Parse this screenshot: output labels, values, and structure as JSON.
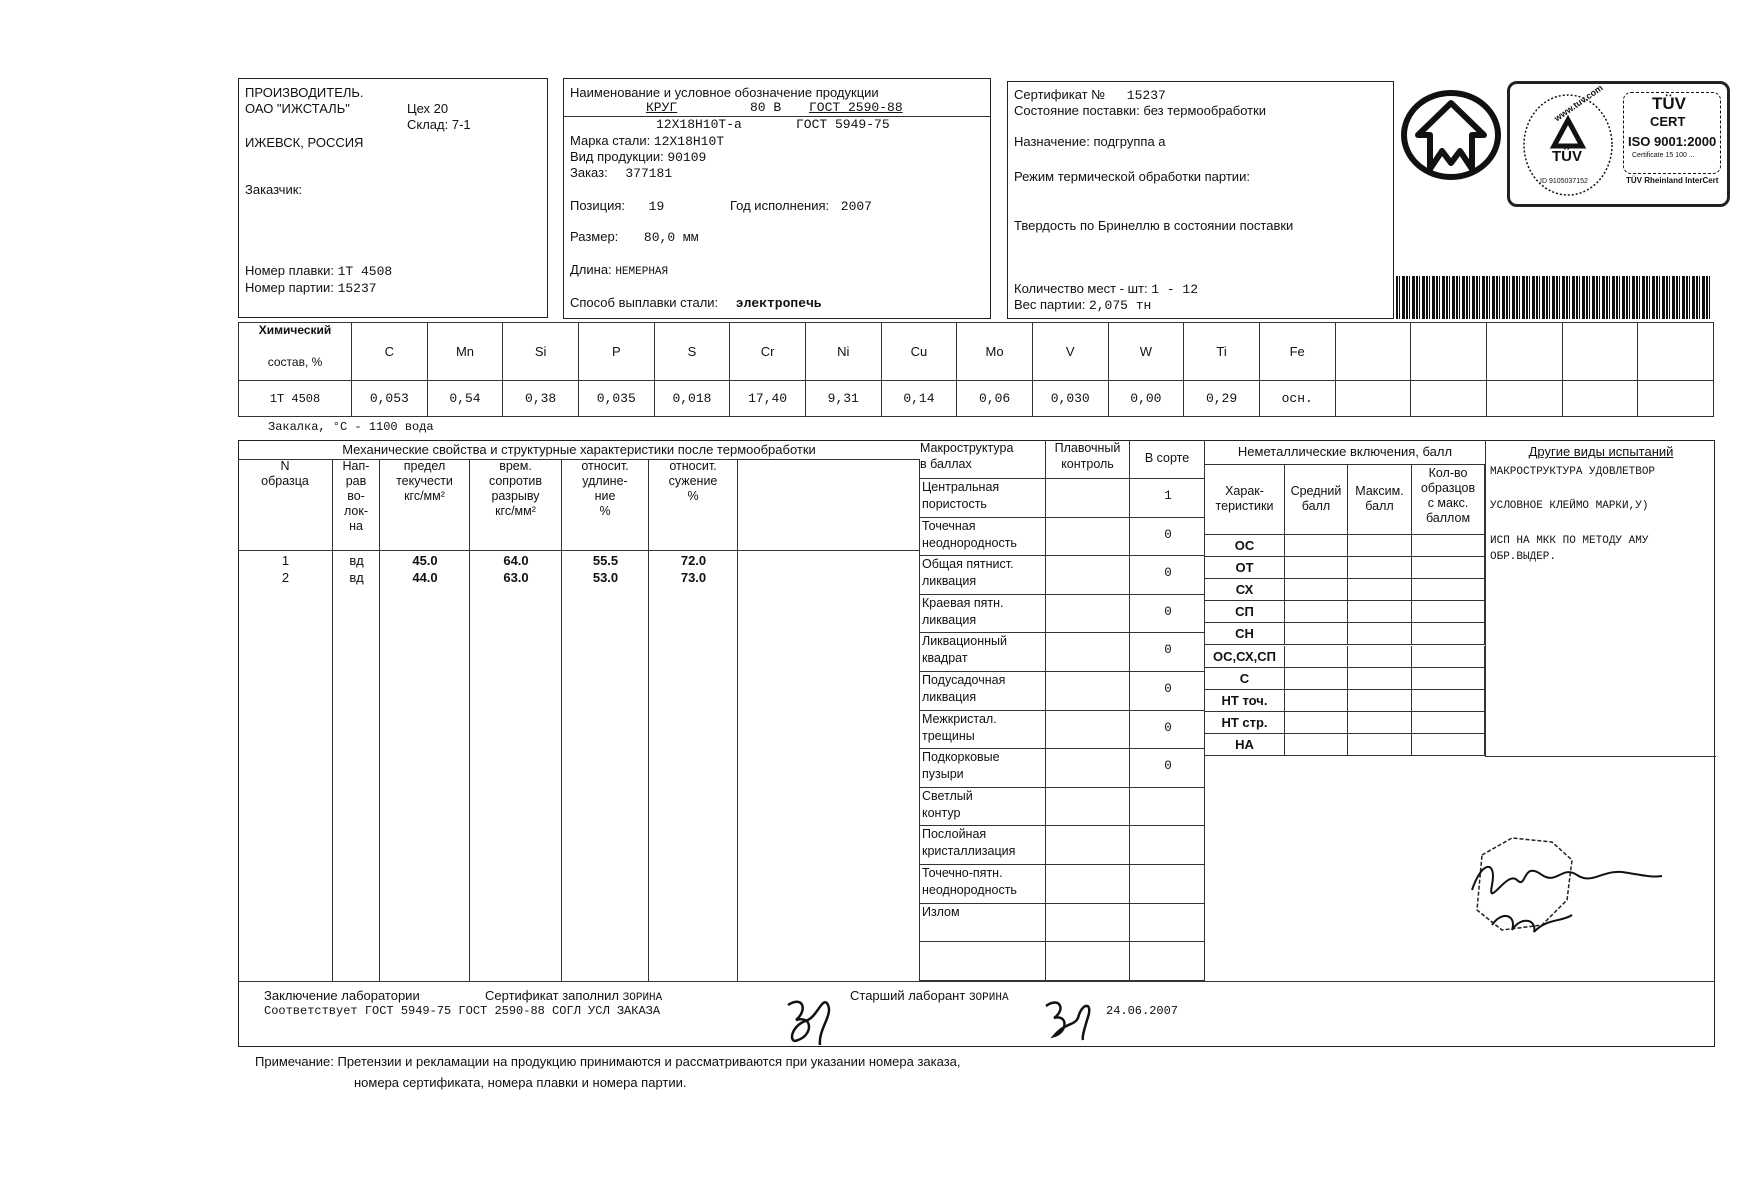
{
  "producer": {
    "label": "ПРОИЗВОДИТЕЛЬ.",
    "company": "ОАО \"ИЖСТАЛЬ\"",
    "workshop": "Цех 20",
    "warehouse": "Склад: 7-1",
    "city": "ИЖЕВСК, РОССИЯ",
    "customer_label": "Заказчик:",
    "heat_label": "Номер плавки:",
    "heat_value": "1Т 4508",
    "batch_label": "Номер партии:",
    "batch_value": "15237"
  },
  "product": {
    "title": "Наименование и условное обозначение продукции",
    "line1_name": "КРУГ",
    "line1_size": "80 В",
    "line1_gost": "ГОСТ 2590-88",
    "line2_grade": "12Х18Н10Т-а",
    "line2_gost": "ГОСТ 5949-75",
    "steel_label": "Марка стали:",
    "steel_value": "12Х18Н10Т",
    "kind_label": "Вид продукции:",
    "kind_value": "90109",
    "order_label": "Заказ:",
    "order_value": "377181",
    "position_label": "Позиция:",
    "position_value": "19",
    "year_label": "Год исполнения:",
    "year_value": "2007",
    "size_label": "Размер:",
    "size_value": "80,0 мм",
    "length_label": "Длина:",
    "length_value": "НЕМЕРНАЯ",
    "melting_label": "Способ выплавки стали:",
    "melting_value": "электропечь"
  },
  "certificate": {
    "number_label": "Сертификат №",
    "number_value": "15237",
    "delivery_label": "Состояние поставки:",
    "delivery_value": "без термообработки",
    "purpose_label": "Назначение:",
    "purpose_value": "подгруппа а",
    "heat_treat_label": "Режим термической обработки партии:",
    "hardness_label": "Твердость по Бринеллю в состоянии поставки",
    "pieces_label": "Количество мест - шт:",
    "pieces_value": "1 - 12",
    "weight_label": "Вес партии:",
    "weight_value": "2,075 тн"
  },
  "logos": {
    "tuv_left_text": "www.tuv.com",
    "tuv_left_mark": "TÜV",
    "tuv_left_id": "ID 9105037152",
    "tuv_right_mark": "TÜV",
    "tuv_right_cert": "CERT",
    "tuv_right_iso": "ISO 9001:2000",
    "tuv_right_certno": "Certificate 15 100 ...",
    "tuv_right_footer": "TÜV Rheinland InterCert"
  },
  "chemistry": {
    "header_line1": "Химический",
    "header_line2": "состав, %",
    "elements": [
      "C",
      "Mn",
      "Si",
      "P",
      "S",
      "Cr",
      "Ni",
      "Cu",
      "Mo",
      "V",
      "W",
      "Ti",
      "Fe",
      "",
      "",
      "",
      "",
      ""
    ],
    "row_label": "1Т 4508",
    "values": [
      "0,053",
      "0,54",
      "0,38",
      "0,035",
      "0,018",
      "17,40",
      "9,31",
      "0,14",
      "0,06",
      "0,030",
      "0,00",
      "0,29",
      "осн.",
      "",
      "",
      "",
      "",
      ""
    ]
  },
  "quench": "Закалка, °С - 1100  вода",
  "mechanical": {
    "title": "Механические свойства и структурные характеристики после термообработки",
    "headers": [
      "N\nобразца",
      "Нап-\nрав\nво-\nлок-\nна",
      "предел\nтекучести\nкгс/мм²",
      "врем.\nсопротив\nразрыву\nкгс/мм²",
      "относит.\nудлине-\nние\n%",
      "относит.\nсужение\n%",
      ""
    ],
    "rows": [
      [
        "1",
        "вд",
        "45.0",
        "64.0",
        "55.5",
        "72.0",
        ""
      ],
      [
        "2",
        "вд",
        "44.0",
        "63.0",
        "53.0",
        "73.0",
        ""
      ]
    ]
  },
  "macro": {
    "headers": [
      "Макроструктура\nв баллах",
      "Плавочный\nконтроль",
      "В сорте"
    ],
    "rows": [
      [
        "Центральная\nпористость",
        "",
        "1"
      ],
      [
        "Точечная\nнеоднородность",
        "",
        "0"
      ],
      [
        "Общая пятнист.\nликвация",
        "",
        "0"
      ],
      [
        "Краевая пятн.\nликвация",
        "",
        "0"
      ],
      [
        "Ликвационный\nквадрат",
        "",
        "0"
      ],
      [
        "Подусадочная\nликвация",
        "",
        "0"
      ],
      [
        "Межкристал.\nтрещины",
        "",
        "0"
      ],
      [
        "Подкорковые\nпузыри",
        "",
        "0"
      ],
      [
        "Светлый\nконтур",
        "",
        ""
      ],
      [
        "Послойная\nкристаллизация",
        "",
        ""
      ],
      [
        "Точечно-пятн.\nнеоднородность",
        "",
        ""
      ],
      [
        "Излом",
        "",
        ""
      ],
      [
        "",
        "",
        ""
      ]
    ]
  },
  "nonmetal": {
    "title": "Неметаллические включения, балл",
    "headers": [
      "Харак-\nтеристики",
      "Средний\nбалл",
      "Максим.\nбалл",
      "Кол-во\nобразцов\nс макс.\nбаллом"
    ],
    "rows": [
      "ОС",
      "ОТ",
      "СХ",
      "СП",
      "СН",
      "ОС,СХ,СП",
      "С",
      "НТ точ.",
      "НТ стр.",
      "НА"
    ]
  },
  "other_tests": {
    "title": "Другие виды испытаний",
    "lines": [
      "МАКРОСТРУКТУРА УДОВЛЕТВОР",
      "УСЛОВНОЕ КЛЕЙМО МАРКИ,У)",
      "ИСП НА МКК ПО МЕТОДУ АМУ",
      "ОБР.ВЫДЕР."
    ]
  },
  "footer": {
    "conclusion_label": "Заключение лаборатории",
    "filled_label": "Сертификат заполнил",
    "filled_name": "ЗОРИНА",
    "senior_label": "Старший лаборант",
    "senior_name": "ЗОРИНА",
    "conclusion_text": "Соответствует ГОСТ 5949-75 ГОСТ 2590-88 СОГЛ УСЛ ЗАКАЗА",
    "date": "24.06.2007"
  },
  "note": {
    "label": "Примечание:",
    "line1": "Претензии и рекламации на продукцию принимаются и рассматриваются при указании номера заказа,",
    "line2": "номера сертификата, номера плавки и номера партии."
  },
  "stamp_text": "Кобякова 24.06.07",
  "colors": {
    "ink": "#111111",
    "paper": "#ffffff"
  }
}
